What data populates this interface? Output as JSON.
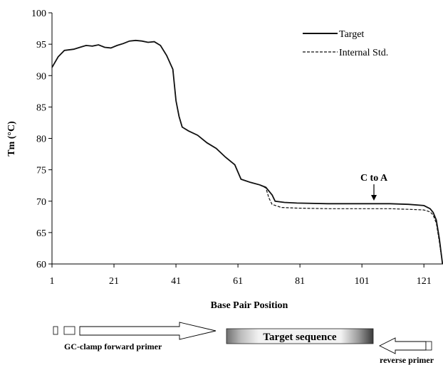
{
  "chart_data": {
    "type": "line",
    "title": "",
    "xlabel": "Base Pair Position",
    "ylabel": "Tm (°C)",
    "xlim": [
      1,
      129
    ],
    "ylim": [
      60,
      100
    ],
    "x_ticks": [
      "1",
      "21",
      "41",
      "61",
      "81",
      "101",
      "121"
    ],
    "y_ticks": [
      "60",
      "65",
      "70",
      "75",
      "80",
      "85",
      "90",
      "95",
      "100"
    ],
    "legend_position": "top-right",
    "grid": false,
    "series": [
      {
        "name": "Target",
        "style": "solid",
        "points": [
          [
            1,
            91.3
          ],
          [
            3,
            93
          ],
          [
            5,
            94
          ],
          [
            8,
            94.2
          ],
          [
            10,
            94.5
          ],
          [
            12,
            94.8
          ],
          [
            14,
            94.7
          ],
          [
            16,
            94.9
          ],
          [
            18,
            94.5
          ],
          [
            20,
            94.4
          ],
          [
            22,
            94.8
          ],
          [
            24,
            95.1
          ],
          [
            26,
            95.5
          ],
          [
            28,
            95.6
          ],
          [
            30,
            95.5
          ],
          [
            32,
            95.3
          ],
          [
            34,
            95.4
          ],
          [
            36,
            94.8
          ],
          [
            38,
            93.2
          ],
          [
            40,
            91
          ],
          [
            41,
            86
          ],
          [
            42,
            83.5
          ],
          [
            43,
            81.8
          ],
          [
            45,
            81.2
          ],
          [
            48,
            80.5
          ],
          [
            51,
            79.3
          ],
          [
            54,
            78.4
          ],
          [
            57,
            77
          ],
          [
            60,
            75.8
          ],
          [
            62,
            73.5
          ],
          [
            65,
            73
          ],
          [
            68,
            72.6
          ],
          [
            70,
            72.2
          ],
          [
            72,
            71
          ],
          [
            73,
            70
          ],
          [
            76,
            69.8
          ],
          [
            80,
            69.7
          ],
          [
            90,
            69.6
          ],
          [
            100,
            69.6
          ],
          [
            110,
            69.6
          ],
          [
            116,
            69.5
          ],
          [
            121,
            69.3
          ],
          [
            123,
            68.8
          ],
          [
            124,
            68.2
          ],
          [
            125,
            67
          ],
          [
            126,
            64
          ],
          [
            127,
            60
          ]
        ]
      },
      {
        "name": "Internal Std.",
        "style": "dashed",
        "points": [
          [
            1,
            91.3
          ],
          [
            3,
            93
          ],
          [
            5,
            94
          ],
          [
            8,
            94.2
          ],
          [
            10,
            94.5
          ],
          [
            12,
            94.8
          ],
          [
            14,
            94.7
          ],
          [
            16,
            94.9
          ],
          [
            18,
            94.5
          ],
          [
            20,
            94.4
          ],
          [
            22,
            94.8
          ],
          [
            24,
            95.1
          ],
          [
            26,
            95.5
          ],
          [
            28,
            95.6
          ],
          [
            30,
            95.5
          ],
          [
            32,
            95.3
          ],
          [
            34,
            95.4
          ],
          [
            36,
            94.8
          ],
          [
            38,
            93.2
          ],
          [
            40,
            91
          ],
          [
            41,
            86
          ],
          [
            42,
            83.5
          ],
          [
            43,
            81.8
          ],
          [
            45,
            81.2
          ],
          [
            48,
            80.5
          ],
          [
            51,
            79.3
          ],
          [
            54,
            78.4
          ],
          [
            57,
            77
          ],
          [
            60,
            75.8
          ],
          [
            62,
            73.5
          ],
          [
            65,
            73
          ],
          [
            68,
            72.6
          ],
          [
            70,
            72.1
          ],
          [
            71,
            70.5
          ],
          [
            72,
            69.5
          ],
          [
            75,
            69
          ],
          [
            80,
            68.9
          ],
          [
            90,
            68.8
          ],
          [
            100,
            68.8
          ],
          [
            110,
            68.8
          ],
          [
            116,
            68.7
          ],
          [
            121,
            68.6
          ],
          [
            123,
            68.3
          ],
          [
            124,
            67.8
          ],
          [
            125,
            66.5
          ],
          [
            126,
            63.5
          ],
          [
            127,
            60
          ]
        ]
      }
    ],
    "annotation": {
      "text": "C to A",
      "x": 110,
      "y": 69.7
    },
    "diagram": {
      "forward_label": "GC-clamp forward primer",
      "target_label": "Target sequence",
      "reverse_label": "reverse primer"
    }
  }
}
